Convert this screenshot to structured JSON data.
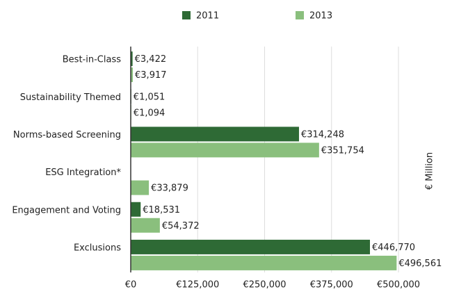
{
  "chart_data": {
    "type": "bar",
    "orientation": "horizontal",
    "categories": [
      "Best-in-Class",
      "Sustainability Themed",
      "Norms-based Screening",
      "ESG Integration*",
      "Engagement and Voting",
      "Exclusions"
    ],
    "series": [
      {
        "name": "2011",
        "color": "#2e6a35",
        "values": [
          3422,
          1051,
          314248,
          null,
          18531,
          446770
        ],
        "value_labels": [
          "€3,422",
          "€1,051",
          "€314,248",
          null,
          "€18,531",
          "€446,770"
        ]
      },
      {
        "name": "2013",
        "color": "#8abf7d",
        "values": [
          3917,
          1094,
          351754,
          33879,
          54372,
          496561
        ],
        "value_labels": [
          "€3,917",
          "€1,094",
          "€351,754",
          "€33,879",
          "€54,372",
          "€496,561"
        ]
      }
    ],
    "xlim": [
      0,
      500000
    ],
    "xticks": [
      {
        "value": 0,
        "label": "€0"
      },
      {
        "value": 125000,
        "label": "€125,000"
      },
      {
        "value": 250000,
        "label": "€250,000"
      },
      {
        "value": 375000,
        "label": "€375,000"
      },
      {
        "value": 500000,
        "label": "€500,000"
      }
    ],
    "xlabel": "€ Million",
    "grid": true,
    "legend": "top"
  }
}
